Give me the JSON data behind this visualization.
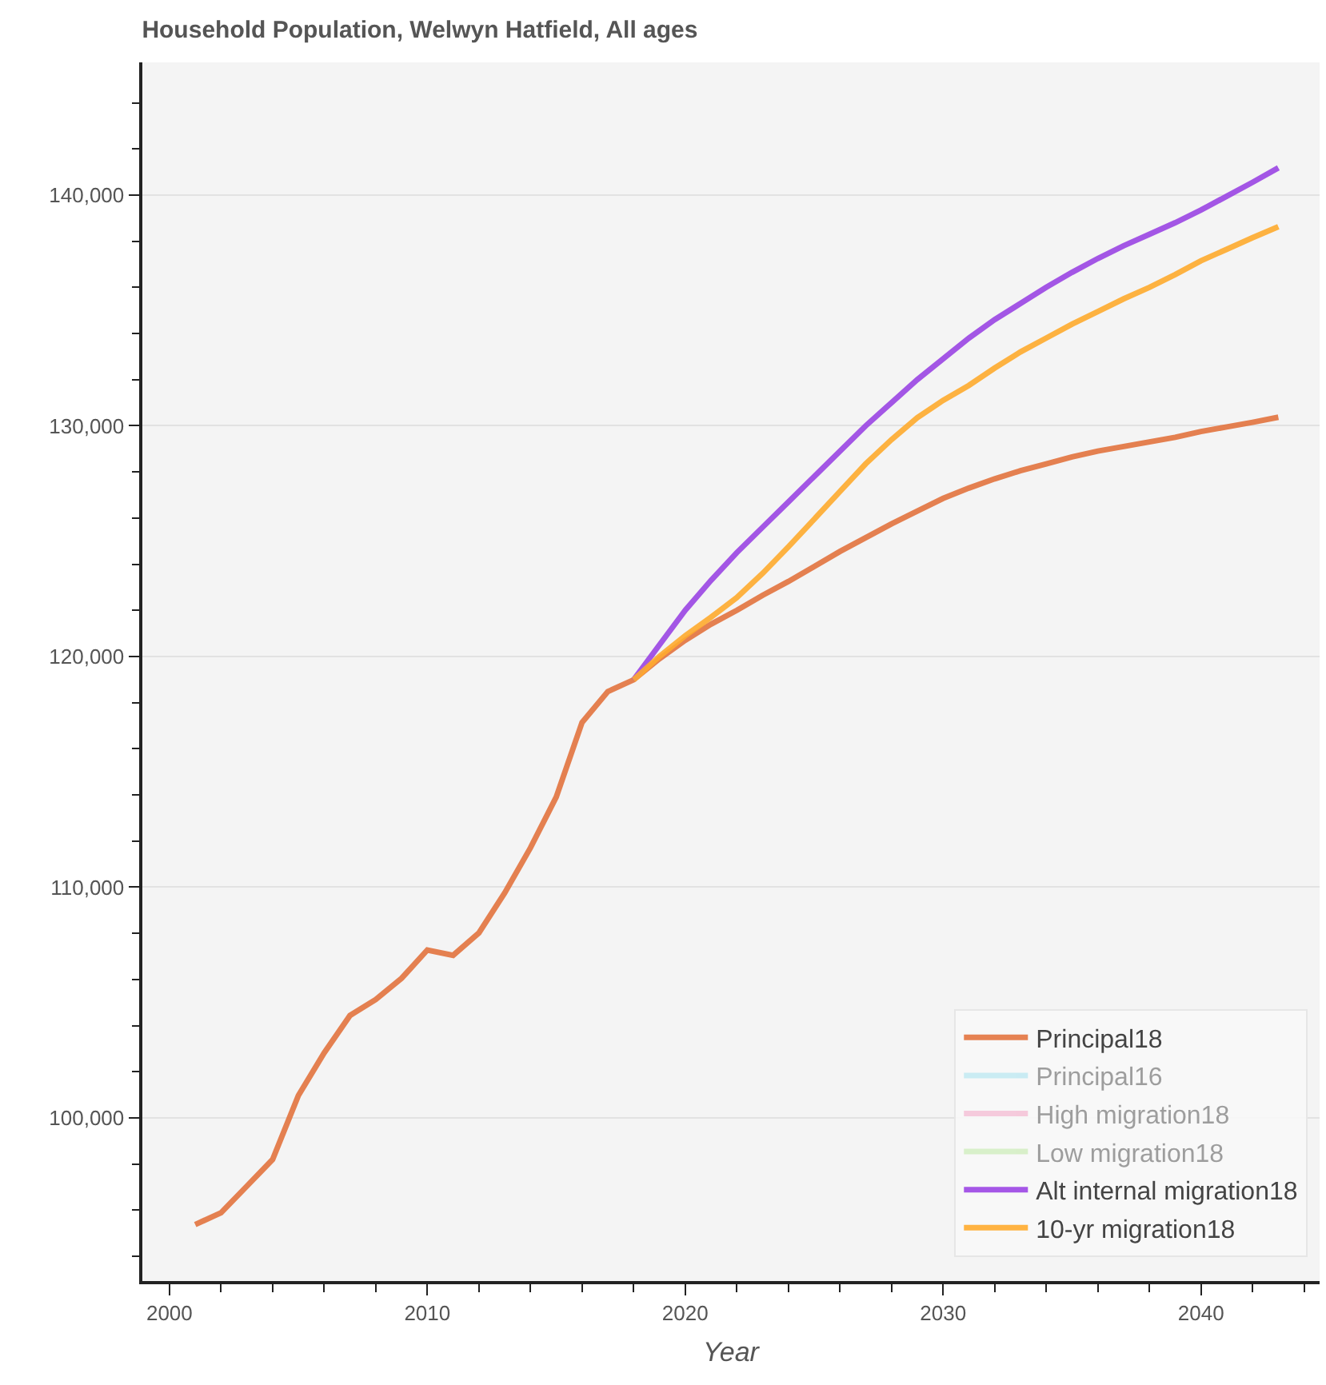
{
  "chart_data": {
    "type": "line",
    "title": "Household Population, Welwyn Hatfield, All ages",
    "xlabel": "Year",
    "x": [
      2001,
      2002,
      2003,
      2004,
      2005,
      2006,
      2007,
      2008,
      2009,
      2010,
      2011,
      2012,
      2013,
      2014,
      2015,
      2016,
      2017,
      2018,
      2019,
      2020,
      2021,
      2022,
      2023,
      2024,
      2025,
      2026,
      2027,
      2028,
      2029,
      2030,
      2031,
      2032,
      2033,
      2034,
      2035,
      2036,
      2037,
      2038,
      2039,
      2040,
      2041,
      2042,
      2043
    ],
    "series": [
      {
        "name": "Principal18",
        "color": "#e3743f",
        "values": [
          95380,
          95890,
          97040,
          98200,
          100970,
          102820,
          104440,
          105130,
          106050,
          107280,
          107050,
          108020,
          109750,
          111710,
          113910,
          117140,
          118480,
          118990,
          119900,
          120700,
          121400,
          122000,
          122650,
          123250,
          123900,
          124550,
          125150,
          125750,
          126300,
          126850,
          127300,
          127700,
          128050,
          128350,
          128650,
          128900,
          129100,
          129300,
          129500,
          129750,
          129950,
          130150,
          130370
        ]
      },
      {
        "name": "Principal16",
        "color": "#91dded",
        "values": [
          null,
          null,
          null,
          null,
          null,
          null,
          null,
          null,
          null,
          null,
          null,
          null,
          null,
          null,
          null,
          null,
          null,
          null,
          null,
          null,
          null,
          null,
          null,
          null,
          null,
          null,
          null,
          null,
          null,
          null,
          null,
          null,
          null,
          null,
          null,
          null,
          null,
          null,
          null,
          null,
          null,
          null,
          null
        ]
      },
      {
        "name": "High migration18",
        "color": "#f291b9",
        "values": [
          null,
          null,
          null,
          null,
          null,
          null,
          null,
          null,
          null,
          null,
          null,
          null,
          null,
          null,
          null,
          null,
          null,
          null,
          null,
          null,
          null,
          null,
          null,
          null,
          null,
          null,
          null,
          null,
          null,
          null,
          null,
          null,
          null,
          null,
          null,
          null,
          null,
          null,
          null,
          null,
          null,
          null,
          null
        ]
      },
      {
        "name": "Low migration18",
        "color": "#b1e591",
        "values": [
          null,
          null,
          null,
          null,
          null,
          null,
          null,
          null,
          null,
          null,
          null,
          null,
          null,
          null,
          null,
          null,
          null,
          null,
          null,
          null,
          null,
          null,
          null,
          null,
          null,
          null,
          null,
          null,
          null,
          null,
          null,
          null,
          null,
          null,
          null,
          null,
          null,
          null,
          null,
          null,
          null,
          null,
          null
        ]
      },
      {
        "name": "Alt internal migration18",
        "color": "#9b45e4",
        "values": [
          null,
          null,
          null,
          null,
          null,
          null,
          null,
          null,
          null,
          null,
          null,
          null,
          null,
          null,
          null,
          null,
          null,
          118990,
          120500,
          122000,
          123300,
          124500,
          125600,
          126700,
          127800,
          128900,
          130000,
          131000,
          132000,
          132900,
          133800,
          134600,
          135300,
          136000,
          136650,
          137250,
          137800,
          138300,
          138800,
          139350,
          139950,
          140550,
          141180
        ]
      },
      {
        "name": "10-yr migration18",
        "color": "#ffab2e",
        "values": [
          null,
          null,
          null,
          null,
          null,
          null,
          null,
          null,
          null,
          null,
          null,
          null,
          null,
          null,
          null,
          null,
          null,
          118990,
          120000,
          120900,
          121700,
          122550,
          123600,
          124750,
          125950,
          127150,
          128350,
          129400,
          130350,
          131100,
          131750,
          132500,
          133200,
          133800,
          134400,
          134950,
          135500,
          136000,
          136550,
          137150,
          137650,
          138150,
          138630
        ]
      }
    ],
    "xlim": [
      1998.95,
      2044.6
    ],
    "ylim": [
      92930,
      145750
    ],
    "xticks": [
      {
        "value": 2000,
        "label": "2000"
      },
      {
        "value": 2002,
        "label": null
      },
      {
        "value": 2004,
        "label": null
      },
      {
        "value": 2006,
        "label": null
      },
      {
        "value": 2008,
        "label": null
      },
      {
        "value": 2010,
        "label": "2010"
      },
      {
        "value": 2012,
        "label": null
      },
      {
        "value": 2014,
        "label": null
      },
      {
        "value": 2016,
        "label": null
      },
      {
        "value": 2018,
        "label": null
      },
      {
        "value": 2020,
        "label": "2020"
      },
      {
        "value": 2022,
        "label": null
      },
      {
        "value": 2024,
        "label": null
      },
      {
        "value": 2026,
        "label": null
      },
      {
        "value": 2028,
        "label": null
      },
      {
        "value": 2030,
        "label": "2030"
      },
      {
        "value": 2032,
        "label": null
      },
      {
        "value": 2034,
        "label": null
      },
      {
        "value": 2036,
        "label": null
      },
      {
        "value": 2038,
        "label": null
      },
      {
        "value": 2040,
        "label": "2040"
      },
      {
        "value": 2042,
        "label": null
      },
      {
        "value": 2044,
        "label": null
      }
    ],
    "yticks": [
      {
        "value": 94000,
        "label": null
      },
      {
        "value": 96000,
        "label": null
      },
      {
        "value": 98000,
        "label": null
      },
      {
        "value": 100000,
        "label": "100,000"
      },
      {
        "value": 102000,
        "label": null
      },
      {
        "value": 104000,
        "label": null
      },
      {
        "value": 106000,
        "label": null
      },
      {
        "value": 108000,
        "label": null
      },
      {
        "value": 110000,
        "label": "110,000"
      },
      {
        "value": 112000,
        "label": null
      },
      {
        "value": 114000,
        "label": null
      },
      {
        "value": 116000,
        "label": null
      },
      {
        "value": 118000,
        "label": null
      },
      {
        "value": 120000,
        "label": "120,000"
      },
      {
        "value": 122000,
        "label": null
      },
      {
        "value": 124000,
        "label": null
      },
      {
        "value": 126000,
        "label": null
      },
      {
        "value": 128000,
        "label": null
      },
      {
        "value": 130000,
        "label": "130,000"
      },
      {
        "value": 132000,
        "label": null
      },
      {
        "value": 134000,
        "label": null
      },
      {
        "value": 136000,
        "label": null
      },
      {
        "value": 138000,
        "label": null
      },
      {
        "value": 140000,
        "label": "140,000"
      },
      {
        "value": 142000,
        "label": null
      },
      {
        "value": 144000,
        "label": null
      }
    ],
    "grid": "y",
    "legend": "bottom right",
    "marker": "none",
    "line_style": "solid"
  }
}
